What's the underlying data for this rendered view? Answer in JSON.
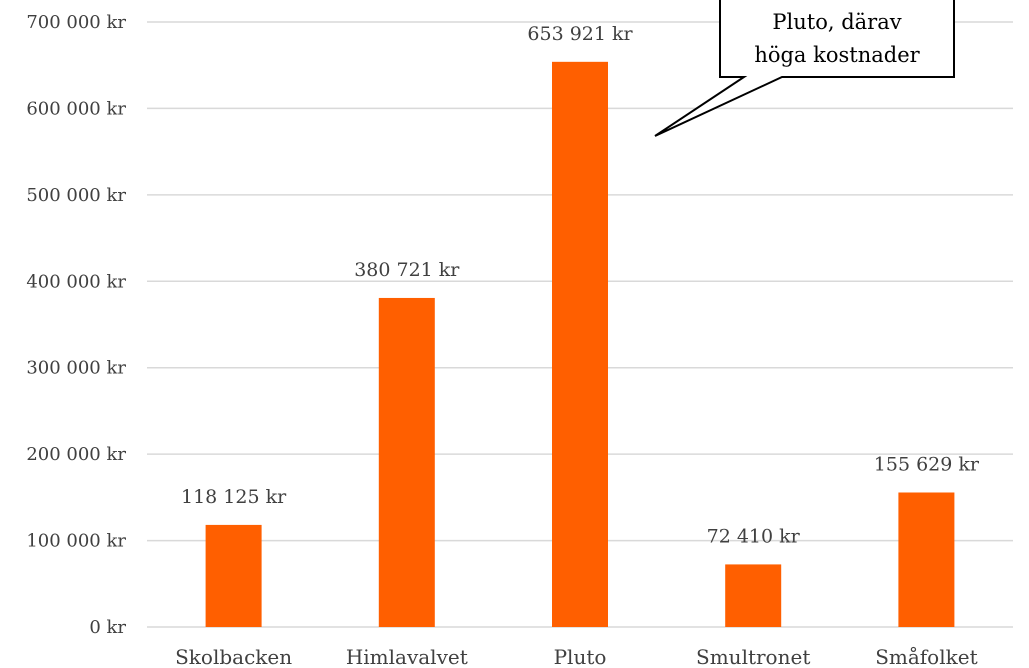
{
  "chart_data": {
    "type": "bar",
    "categories": [
      "Skolbacken",
      "Himlavalvet",
      "Pluto",
      "Smultronet",
      "Småfolket"
    ],
    "values": [
      118125,
      380721,
      653921,
      72410,
      155629
    ],
    "value_labels": [
      "118 125 kr",
      "380 721 kr",
      "653 921 kr",
      "72 410 kr",
      "155 629 kr"
    ],
    "ylim": [
      0,
      700000
    ],
    "y_ticks": [
      0,
      100000,
      200000,
      300000,
      400000,
      500000,
      600000,
      700000
    ],
    "y_tick_labels": [
      "0 kr",
      "100 000 kr",
      "200 000 kr",
      "300 000 kr",
      "400 000 kr",
      "500 000 kr",
      "600 000 kr",
      "700 000 kr"
    ],
    "grid": true,
    "bar_color": "#FF5F00",
    "gridline_color": "#D9D9D9",
    "annotation": {
      "target_category": "Pluto",
      "lines": [
        "Pluto, därav",
        "höga kostnader"
      ]
    }
  }
}
